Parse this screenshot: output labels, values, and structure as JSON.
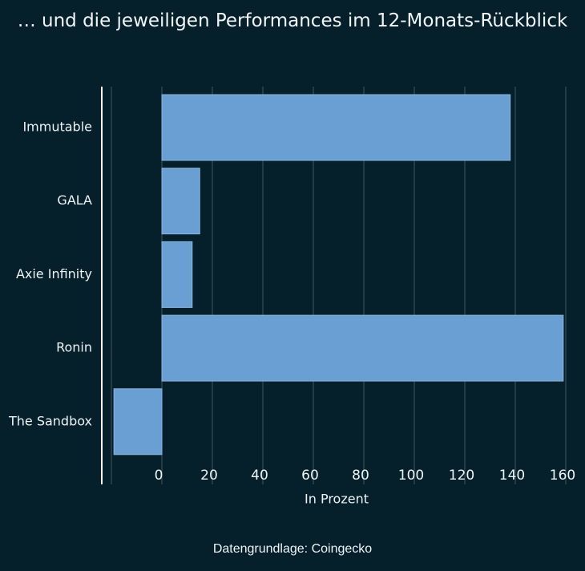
{
  "chart_data": {
    "type": "bar",
    "orientation": "horizontal",
    "title": "… und die jeweiligen Performances im 12-Monats-Rückblick",
    "categories": [
      "Immutable",
      "GALA",
      "Axie Infinity",
      "Ronin",
      "The Sandbox"
    ],
    "values": [
      138,
      15,
      12,
      159,
      -19
    ],
    "xlabel": "In Prozent",
    "ylabel": "",
    "xlim": [
      -24,
      161
    ],
    "xticks": [
      0,
      20,
      40,
      60,
      80,
      100,
      120,
      140,
      160
    ],
    "grid": true,
    "legend": "none",
    "colors": {
      "bar": "#699fd3",
      "bar_stroke": "#8bb6de",
      "background": "#05202b",
      "grid": "#3e5661",
      "axis": "#ffffff",
      "text": "#eef3f5"
    }
  },
  "footer": {
    "source": "Datengrundlage: Coingecko"
  }
}
